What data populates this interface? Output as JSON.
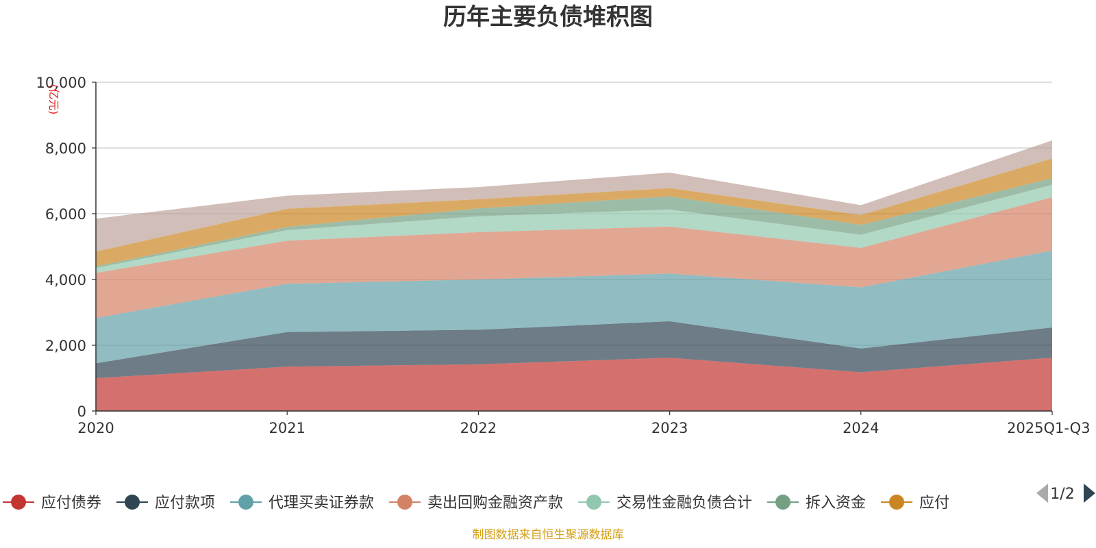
{
  "colors": {
    "accent": "#c23531",
    "source": "#d4a017",
    "unit": "#e02020",
    "pager_active": "#2f4554",
    "pager_inactive": "#aaaaaa"
  },
  "legend": {
    "page_indicator": "1/2",
    "prev_icon": "triangle-left-icon",
    "next_icon": "triangle-right-icon"
  },
  "source_note": "制图数据来自恒生聚源数据库",
  "chart_data": {
    "type": "area",
    "stacked": true,
    "title": "历年主要负债堆积图",
    "ylabel": "(亿元)",
    "xlabel": "",
    "categories": [
      "2020",
      "2021",
      "2022",
      "2023",
      "2024",
      "2025Q1-Q3"
    ],
    "ylim": [
      0,
      10000
    ],
    "yticks": [
      0,
      2000,
      4000,
      6000,
      8000,
      10000
    ],
    "ytick_labels": [
      "0",
      "2,000",
      "4,000",
      "6,000",
      "8,000",
      "10,000"
    ],
    "grid": true,
    "legend_position": "bottom",
    "series": [
      {
        "name": "应付债券",
        "color": "#c23531",
        "values": [
          1000,
          1350,
          1420,
          1620,
          1180,
          1620
        ]
      },
      {
        "name": "应付款项",
        "color": "#2f4554",
        "values": [
          450,
          1050,
          1050,
          1110,
          720,
          920
        ]
      },
      {
        "name": "代理买卖证券款",
        "color": "#61a0a8",
        "values": [
          1380,
          1470,
          1530,
          1450,
          1860,
          2340
        ]
      },
      {
        "name": "卖出回购金融资产款",
        "color": "#d48265",
        "values": [
          1370,
          1310,
          1440,
          1430,
          1200,
          1620
        ]
      },
      {
        "name": "交易性金融负债合计",
        "color": "#91c7ae",
        "values": [
          150,
          320,
          480,
          520,
          400,
          380
        ]
      },
      {
        "name": "拆入资金",
        "color": "#749f83",
        "values": [
          50,
          100,
          240,
          400,
          300,
          200
        ]
      },
      {
        "name": "应付",
        "color": "#ca8622",
        "values": [
          450,
          550,
          280,
          250,
          300,
          600
        ]
      },
      {
        "name": "",
        "color": "#bda29a",
        "values": [
          1000,
          400,
          370,
          470,
          300,
          550
        ]
      }
    ]
  }
}
